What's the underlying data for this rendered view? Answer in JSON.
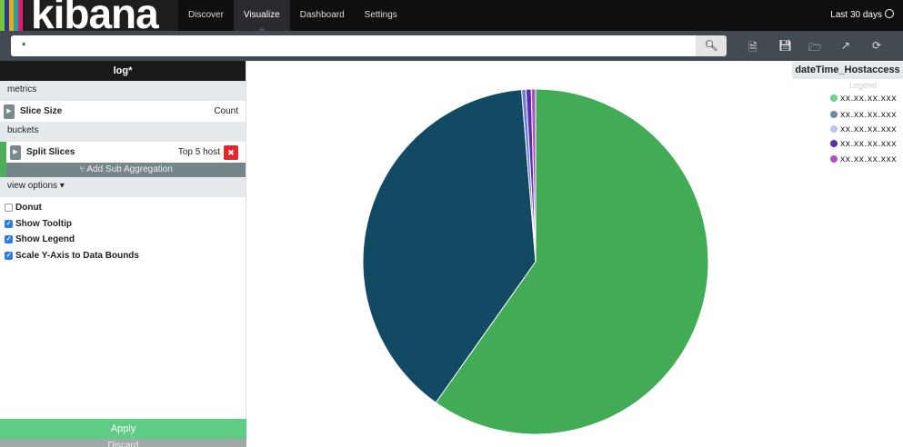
{
  "header": {
    "logo": "kibana",
    "logo_colors": [
      "#74c53a",
      "#2a3a8c",
      "#f0a31f",
      "#1fa69a",
      "#e0197b"
    ],
    "nav": [
      "Discover",
      "Visualize",
      "Dashboard",
      "Settings"
    ],
    "active_nav": "Visualize",
    "time_range": "Last 30 days"
  },
  "search": {
    "value": "*",
    "icon": "search-icon"
  },
  "toolbar": {
    "icons": [
      "new-visualization-icon",
      "save-icon",
      "open-icon",
      "share-icon",
      "refresh-icon"
    ]
  },
  "sidebar": {
    "title": "log*",
    "metrics_label": "metrics",
    "slice_size_label": "Slice Size",
    "slice_size_value": "Count",
    "buckets_label": "buckets",
    "split_label": "Split Slices",
    "split_value": "Top 5 host",
    "add_sub": "⑂ Add Sub Aggregation",
    "view_options": "view options ▾",
    "options": [
      {
        "label": "Donut",
        "checked": false
      },
      {
        "label": "Show Tooltip",
        "checked": true
      },
      {
        "label": "Show Legend",
        "checked": true
      },
      {
        "label": "Scale Y-Axis to Data Bounds",
        "checked": true
      }
    ],
    "apply": "Apply",
    "discard": "Discard"
  },
  "legend": {
    "title": "dateTime_Hostaccess",
    "toggle": "Legend",
    "items": [
      {
        "label": "xx.xx.xx.xxx",
        "color": "#6dd48f"
      },
      {
        "label": "xx.xx.xx.xxx",
        "color": "#6f8aa0"
      },
      {
        "label": "xx.xx.xx.xxx",
        "color": "#bcc2ee"
      },
      {
        "label": "xx.xx.xx.xxx",
        "color": "#5a2eb0"
      },
      {
        "label": "xx.xx.xx.xxx",
        "color": "#b24fc4"
      }
    ]
  },
  "chart_data": {
    "type": "pie",
    "title": "dateTime_Hostaccess",
    "categories": [
      "xx.xx.xx.xxx",
      "xx.xx.xx.xxx",
      "xx.xx.xx.xxx",
      "xx.xx.xx.xxx",
      "xx.xx.xx.xxx"
    ],
    "values": [
      59.8,
      38.9,
      0.4,
      0.5,
      0.4
    ],
    "colors": [
      "#42ab55",
      "#134a63",
      "#6a7fe0",
      "#5a2eb0",
      "#b24fc4"
    ]
  }
}
